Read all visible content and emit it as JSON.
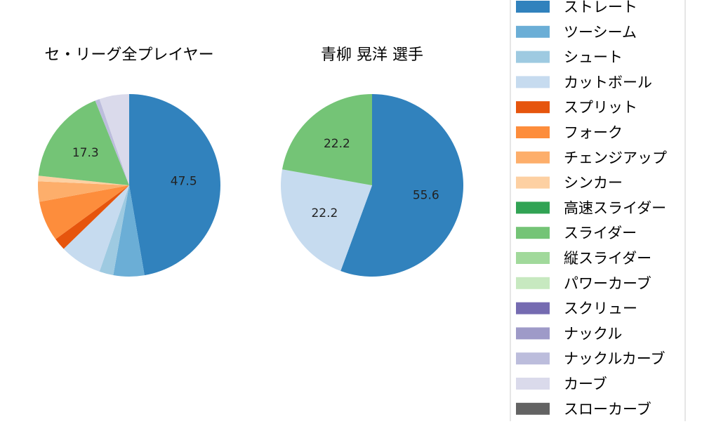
{
  "chart_data": [
    {
      "type": "pie",
      "title": "セ・リーグ全プレイヤー",
      "categories": [
        "ストレート",
        "ツーシーム",
        "シュート",
        "カットボール",
        "スプリット",
        "フォーク",
        "チェンジアップ",
        "シンカー",
        "高速スライダー",
        "スライダー",
        "縦スライダー",
        "パワーカーブ",
        "スクリュー",
        "ナックル",
        "ナックルカーブ",
        "カーブ",
        "スローカーブ"
      ],
      "values": [
        47.5,
        5.5,
        2.5,
        7.5,
        2.2,
        7.2,
        3.6,
        1.0,
        0,
        17.3,
        0,
        0,
        0,
        0,
        0.8,
        5.3,
        0
      ],
      "data_labels": {
        "ストレート": "47.5",
        "スライダー": "17.3"
      }
    },
    {
      "type": "pie",
      "title": "青柳 晃洋  選手",
      "categories": [
        "ストレート",
        "ツーシーム",
        "シュート",
        "カットボール",
        "スプリット",
        "フォーク",
        "チェンジアップ",
        "シンカー",
        "高速スライダー",
        "スライダー",
        "縦スライダー",
        "パワーカーブ",
        "スクリュー",
        "ナックル",
        "ナックルカーブ",
        "カーブ",
        "スローカーブ"
      ],
      "values": [
        55.6,
        0,
        0,
        22.2,
        0,
        0,
        0,
        0,
        0,
        22.2,
        0,
        0,
        0,
        0,
        0,
        0,
        0
      ],
      "data_labels": {
        "ストレート": "55.6",
        "カットボール": "22.2",
        "スライダー": "22.2"
      }
    }
  ],
  "legend": {
    "placement": "right",
    "items": [
      {
        "label": "ストレート",
        "color": "#3182bd"
      },
      {
        "label": "ツーシーム",
        "color": "#6baed6"
      },
      {
        "label": "シュート",
        "color": "#9ecae1"
      },
      {
        "label": "カットボール",
        "color": "#c6dbef"
      },
      {
        "label": "スプリット",
        "color": "#e6550d"
      },
      {
        "label": "フォーク",
        "color": "#fd8d3c"
      },
      {
        "label": "チェンジアップ",
        "color": "#fdae6b"
      },
      {
        "label": "シンカー",
        "color": "#fdd0a2"
      },
      {
        "label": "高速スライダー",
        "color": "#31a354"
      },
      {
        "label": "スライダー",
        "color": "#74c476"
      },
      {
        "label": "縦スライダー",
        "color": "#a1d99b"
      },
      {
        "label": "パワーカーブ",
        "color": "#c7e9c0"
      },
      {
        "label": "スクリュー",
        "color": "#756bb1"
      },
      {
        "label": "ナックル",
        "color": "#9e9ac8"
      },
      {
        "label": "ナックルカーブ",
        "color": "#bcbddc"
      },
      {
        "label": "カーブ",
        "color": "#dadaeb"
      },
      {
        "label": "スローカーブ",
        "color": "#636363"
      }
    ]
  }
}
